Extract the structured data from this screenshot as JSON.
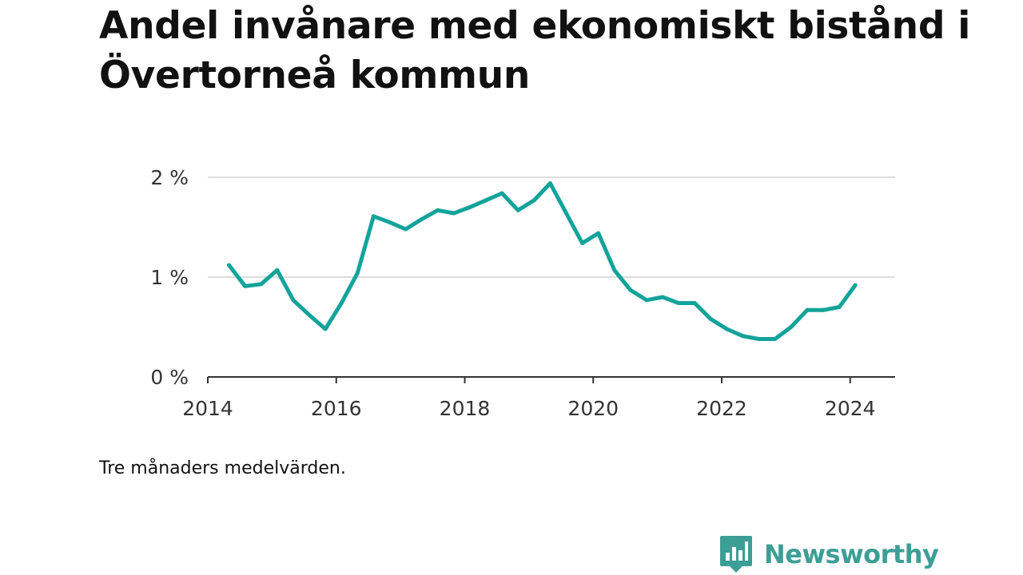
{
  "chart_data": {
    "type": "line",
    "title": "Andel invånare med ekonomiskt bistånd i Övertorneå kommun",
    "note": "Tre månaders medelvärden.",
    "xlim": [
      2014,
      2024.7
    ],
    "ylim": [
      0,
      2
    ],
    "x_ticks": [
      {
        "value": 2014,
        "label": "2014"
      },
      {
        "value": 2016,
        "label": "2016"
      },
      {
        "value": 2018,
        "label": "2018"
      },
      {
        "value": 2020,
        "label": "2020"
      },
      {
        "value": 2022,
        "label": "2022"
      },
      {
        "value": 2024,
        "label": "2024"
      }
    ],
    "y_ticks": [
      {
        "value": 0,
        "label": "0 %"
      },
      {
        "value": 1,
        "label": "1 %"
      },
      {
        "value": 2,
        "label": "2 %"
      }
    ],
    "grid": true,
    "line_color": "#13a39a",
    "series": [
      {
        "x": [
          2014.33,
          2014.58,
          2014.83,
          2015.08,
          2015.33,
          2015.58,
          2015.83,
          2016.08,
          2016.33,
          2016.58,
          2016.83,
          2017.08,
          2017.33,
          2017.58,
          2017.83,
          2018.08,
          2018.33,
          2018.58,
          2018.83,
          2019.08,
          2019.33,
          2019.58,
          2019.83,
          2020.08,
          2020.33,
          2020.58,
          2020.83,
          2021.08,
          2021.33,
          2021.58,
          2021.83,
          2022.08,
          2022.33,
          2022.58,
          2022.83,
          2023.08,
          2023.33,
          2023.58,
          2023.83,
          2024.08
        ],
        "y": [
          1.12,
          0.91,
          0.93,
          1.07,
          0.77,
          0.62,
          0.48,
          0.74,
          1.04,
          1.61,
          1.55,
          1.48,
          1.58,
          1.67,
          1.64,
          1.7,
          1.77,
          1.84,
          1.67,
          1.77,
          1.94,
          1.64,
          1.34,
          1.44,
          1.07,
          0.87,
          0.77,
          0.8,
          0.74,
          0.74,
          0.58,
          0.48,
          0.41,
          0.38,
          0.38,
          0.5,
          0.67,
          0.67,
          0.7,
          0.92
        ]
      }
    ]
  },
  "brand": {
    "name": "Newsworthy",
    "color": "#3d9e96"
  }
}
